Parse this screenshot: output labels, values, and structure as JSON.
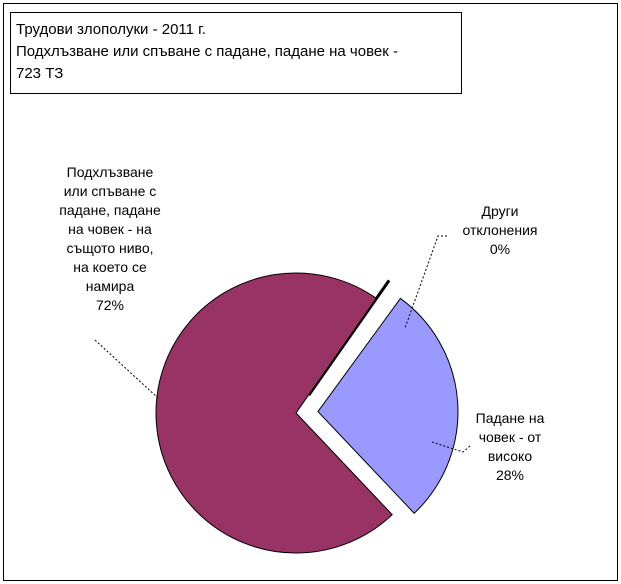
{
  "title": {
    "line1": "Трудови злополуки - 2011 г.",
    "line2": "Подхлъзване или спъване с падане, падане на човек -",
    "line3": "723 ТЗ"
  },
  "chart_data": {
    "type": "pie",
    "title": "Трудови злополуки - 2011 г. Подхлъзване или спъване с падане, падане на човек - 723 ТЗ",
    "exploded": true,
    "slices": [
      {
        "label_lines": [
          "Подхлъзване",
          "или спъване с",
          "падане, падане",
          "на човек - на",
          "същото ниво,",
          "на което се",
          "намира"
        ],
        "percent_label": "72%",
        "value": 72,
        "color": "#993366"
      },
      {
        "label_lines": [
          "Други",
          "отклонения"
        ],
        "percent_label": "0%",
        "value": 0.3,
        "color": "#000000"
      },
      {
        "label_lines": [
          "Падане на",
          "човек - от",
          "високо"
        ],
        "percent_label": "28%",
        "value": 28,
        "color": "#9999ff"
      }
    ]
  }
}
